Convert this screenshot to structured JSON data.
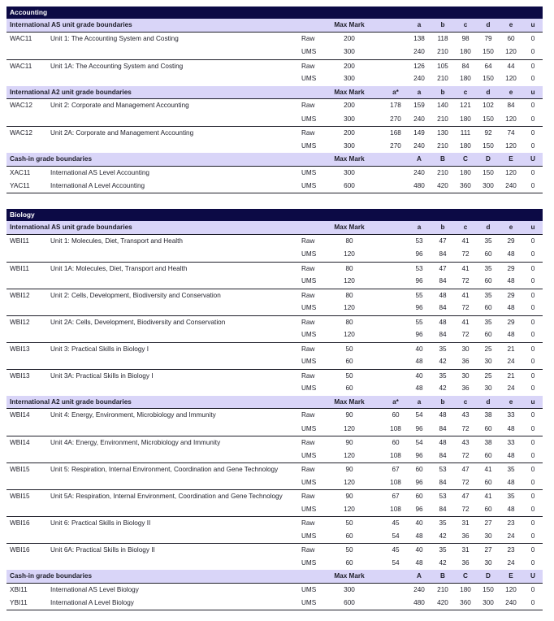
{
  "sections": [
    {
      "title": "Accounting",
      "groups": [
        {
          "heading": "International AS unit grade boundaries",
          "max_label": "Max Mark",
          "astar_label": "",
          "grade_labels": [
            "a",
            "b",
            "c",
            "d",
            "e",
            "u"
          ],
          "units": [
            {
              "code": "WAC11",
              "title": "Unit 1: The Accounting System and Costing",
              "rows": [
                {
                  "type": "Raw",
                  "max": "200",
                  "astar": "",
                  "grades": [
                    "138",
                    "118",
                    "98",
                    "79",
                    "60",
                    "0"
                  ]
                },
                {
                  "type": "UMS",
                  "max": "300",
                  "astar": "",
                  "grades": [
                    "240",
                    "210",
                    "180",
                    "150",
                    "120",
                    "0"
                  ]
                }
              ]
            },
            {
              "code": "WAC11",
              "title": "Unit 1A: The Accounting System and Costing",
              "rows": [
                {
                  "type": "Raw",
                  "max": "200",
                  "astar": "",
                  "grades": [
                    "126",
                    "105",
                    "84",
                    "64",
                    "44",
                    "0"
                  ]
                },
                {
                  "type": "UMS",
                  "max": "300",
                  "astar": "",
                  "grades": [
                    "240",
                    "210",
                    "180",
                    "150",
                    "120",
                    "0"
                  ]
                }
              ]
            }
          ]
        },
        {
          "heading": "International A2 unit grade boundaries",
          "max_label": "Max Mark",
          "astar_label": "a*",
          "grade_labels": [
            "a",
            "b",
            "c",
            "d",
            "e",
            "u"
          ],
          "units": [
            {
              "code": "WAC12",
              "title": "Unit 2: Corporate and Management Accounting",
              "rows": [
                {
                  "type": "Raw",
                  "max": "200",
                  "astar": "178",
                  "grades": [
                    "159",
                    "140",
                    "121",
                    "102",
                    "84",
                    "0"
                  ]
                },
                {
                  "type": "UMS",
                  "max": "300",
                  "astar": "270",
                  "grades": [
                    "240",
                    "210",
                    "180",
                    "150",
                    "120",
                    "0"
                  ]
                }
              ]
            },
            {
              "code": "WAC12",
              "title": "Unit 2A: Corporate and Management Accounting",
              "rows": [
                {
                  "type": "Raw",
                  "max": "200",
                  "astar": "168",
                  "grades": [
                    "149",
                    "130",
                    "111",
                    "92",
                    "74",
                    "0"
                  ]
                },
                {
                  "type": "UMS",
                  "max": "300",
                  "astar": "270",
                  "grades": [
                    "240",
                    "210",
                    "180",
                    "150",
                    "120",
                    "0"
                  ]
                }
              ]
            }
          ]
        },
        {
          "heading": "Cash-in grade boundaries",
          "max_label": "Max Mark",
          "astar_label": "",
          "grade_labels": [
            "A",
            "B",
            "C",
            "D",
            "E",
            "U"
          ],
          "cashin": true,
          "units": [
            {
              "code": "XAC11",
              "title": "International AS Level Accounting",
              "rows": [
                {
                  "type": "UMS",
                  "max": "300",
                  "astar": "",
                  "grades": [
                    "240",
                    "210",
                    "180",
                    "150",
                    "120",
                    "0"
                  ]
                }
              ]
            },
            {
              "code": "YAC11",
              "title": "International A Level Accounting",
              "rows": [
                {
                  "type": "UMS",
                  "max": "600",
                  "astar": "",
                  "grades": [
                    "480",
                    "420",
                    "360",
                    "300",
                    "240",
                    "0"
                  ]
                }
              ]
            }
          ]
        }
      ]
    },
    {
      "title": "Biology",
      "groups": [
        {
          "heading": "International AS unit grade boundaries",
          "max_label": "Max Mark",
          "astar_label": "",
          "grade_labels": [
            "a",
            "b",
            "c",
            "d",
            "e",
            "u"
          ],
          "units": [
            {
              "code": "WBI11",
              "title": "Unit 1: Molecules, Diet, Transport and Health",
              "rows": [
                {
                  "type": "Raw",
                  "max": "80",
                  "astar": "",
                  "grades": [
                    "53",
                    "47",
                    "41",
                    "35",
                    "29",
                    "0"
                  ]
                },
                {
                  "type": "UMS",
                  "max": "120",
                  "astar": "",
                  "grades": [
                    "96",
                    "84",
                    "72",
                    "60",
                    "48",
                    "0"
                  ]
                }
              ]
            },
            {
              "code": "WBI11",
              "title": "Unit 1A: Molecules, Diet, Transport and Health",
              "rows": [
                {
                  "type": "Raw",
                  "max": "80",
                  "astar": "",
                  "grades": [
                    "53",
                    "47",
                    "41",
                    "35",
                    "29",
                    "0"
                  ]
                },
                {
                  "type": "UMS",
                  "max": "120",
                  "astar": "",
                  "grades": [
                    "96",
                    "84",
                    "72",
                    "60",
                    "48",
                    "0"
                  ]
                }
              ]
            },
            {
              "code": "WBI12",
              "title": "Unit 2: Cells, Development, Biodiversity and Conservation",
              "rows": [
                {
                  "type": "Raw",
                  "max": "80",
                  "astar": "",
                  "grades": [
                    "55",
                    "48",
                    "41",
                    "35",
                    "29",
                    "0"
                  ]
                },
                {
                  "type": "UMS",
                  "max": "120",
                  "astar": "",
                  "grades": [
                    "96",
                    "84",
                    "72",
                    "60",
                    "48",
                    "0"
                  ]
                }
              ]
            },
            {
              "code": "WBI12",
              "title": "Unit 2A: Cells, Development, Biodiversity and Conservation",
              "rows": [
                {
                  "type": "Raw",
                  "max": "80",
                  "astar": "",
                  "grades": [
                    "55",
                    "48",
                    "41",
                    "35",
                    "29",
                    "0"
                  ]
                },
                {
                  "type": "UMS",
                  "max": "120",
                  "astar": "",
                  "grades": [
                    "96",
                    "84",
                    "72",
                    "60",
                    "48",
                    "0"
                  ]
                }
              ]
            },
            {
              "code": "WBI13",
              "title": "Unit 3: Practical Skills in Biology I",
              "rows": [
                {
                  "type": "Raw",
                  "max": "50",
                  "astar": "",
                  "grades": [
                    "40",
                    "35",
                    "30",
                    "25",
                    "21",
                    "0"
                  ]
                },
                {
                  "type": "UMS",
                  "max": "60",
                  "astar": "",
                  "grades": [
                    "48",
                    "42",
                    "36",
                    "30",
                    "24",
                    "0"
                  ]
                }
              ]
            },
            {
              "code": "WBI13",
              "title": "Unit 3A: Practical Skills in Biology I",
              "rows": [
                {
                  "type": "Raw",
                  "max": "50",
                  "astar": "",
                  "grades": [
                    "40",
                    "35",
                    "30",
                    "25",
                    "21",
                    "0"
                  ]
                },
                {
                  "type": "UMS",
                  "max": "60",
                  "astar": "",
                  "grades": [
                    "48",
                    "42",
                    "36",
                    "30",
                    "24",
                    "0"
                  ]
                }
              ]
            }
          ]
        },
        {
          "heading": "International A2 unit grade boundaries",
          "max_label": "Max Mark",
          "astar_label": "a*",
          "grade_labels": [
            "a",
            "b",
            "c",
            "d",
            "e",
            "u"
          ],
          "units": [
            {
              "code": "WBI14",
              "title": "Unit 4: Energy, Environment, Microbiology and Immunity",
              "rows": [
                {
                  "type": "Raw",
                  "max": "90",
                  "astar": "60",
                  "grades": [
                    "54",
                    "48",
                    "43",
                    "38",
                    "33",
                    "0"
                  ]
                },
                {
                  "type": "UMS",
                  "max": "120",
                  "astar": "108",
                  "grades": [
                    "96",
                    "84",
                    "72",
                    "60",
                    "48",
                    "0"
                  ]
                }
              ]
            },
            {
              "code": "WBI14",
              "title": "Unit 4A: Energy, Environment, Microbiology and Immunity",
              "rows": [
                {
                  "type": "Raw",
                  "max": "90",
                  "astar": "60",
                  "grades": [
                    "54",
                    "48",
                    "43",
                    "38",
                    "33",
                    "0"
                  ]
                },
                {
                  "type": "UMS",
                  "max": "120",
                  "astar": "108",
                  "grades": [
                    "96",
                    "84",
                    "72",
                    "60",
                    "48",
                    "0"
                  ]
                }
              ]
            },
            {
              "code": "WBI15",
              "title": "Unit 5: Respiration, Internal Environment, Coordination and Gene Technology",
              "rows": [
                {
                  "type": "Raw",
                  "max": "90",
                  "astar": "67",
                  "grades": [
                    "60",
                    "53",
                    "47",
                    "41",
                    "35",
                    "0"
                  ]
                },
                {
                  "type": "UMS",
                  "max": "120",
                  "astar": "108",
                  "grades": [
                    "96",
                    "84",
                    "72",
                    "60",
                    "48",
                    "0"
                  ]
                }
              ]
            },
            {
              "code": "WBI15",
              "title": "Unit 5A: Respiration, Internal Environment, Coordination and Gene Technology",
              "rows": [
                {
                  "type": "Raw",
                  "max": "90",
                  "astar": "67",
                  "grades": [
                    "60",
                    "53",
                    "47",
                    "41",
                    "35",
                    "0"
                  ]
                },
                {
                  "type": "UMS",
                  "max": "120",
                  "astar": "108",
                  "grades": [
                    "96",
                    "84",
                    "72",
                    "60",
                    "48",
                    "0"
                  ]
                }
              ]
            },
            {
              "code": "WBI16",
              "title": "Unit 6: Practical Skills in Biology II",
              "rows": [
                {
                  "type": "Raw",
                  "max": "50",
                  "astar": "45",
                  "grades": [
                    "40",
                    "35",
                    "31",
                    "27",
                    "23",
                    "0"
                  ]
                },
                {
                  "type": "UMS",
                  "max": "60",
                  "astar": "54",
                  "grades": [
                    "48",
                    "42",
                    "36",
                    "30",
                    "24",
                    "0"
                  ]
                }
              ]
            },
            {
              "code": "WBI16",
              "title": "Unit 6A: Practical Skills in Biology II",
              "rows": [
                {
                  "type": "Raw",
                  "max": "50",
                  "astar": "45",
                  "grades": [
                    "40",
                    "35",
                    "31",
                    "27",
                    "23",
                    "0"
                  ]
                },
                {
                  "type": "UMS",
                  "max": "60",
                  "astar": "54",
                  "grades": [
                    "48",
                    "42",
                    "36",
                    "30",
                    "24",
                    "0"
                  ]
                }
              ]
            }
          ]
        },
        {
          "heading": "Cash-in grade boundaries",
          "max_label": "Max Mark",
          "astar_label": "",
          "grade_labels": [
            "A",
            "B",
            "C",
            "D",
            "E",
            "U"
          ],
          "cashin": true,
          "units": [
            {
              "code": "XBI11",
              "title": "International AS Level Biology",
              "rows": [
                {
                  "type": "UMS",
                  "max": "300",
                  "astar": "",
                  "grades": [
                    "240",
                    "210",
                    "180",
                    "150",
                    "120",
                    "0"
                  ]
                }
              ]
            },
            {
              "code": "YBI11",
              "title": "International A Level Biology",
              "rows": [
                {
                  "type": "UMS",
                  "max": "600",
                  "astar": "",
                  "grades": [
                    "480",
                    "420",
                    "360",
                    "300",
                    "240",
                    "0"
                  ]
                }
              ]
            }
          ]
        }
      ]
    }
  ]
}
